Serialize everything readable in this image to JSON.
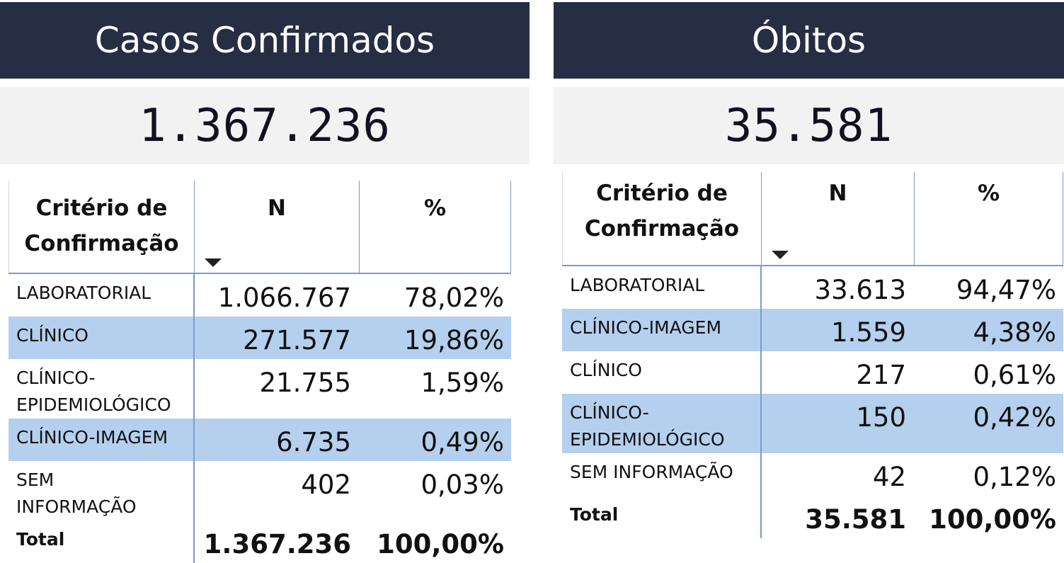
{
  "casos": {
    "title": "Casos Confirmados",
    "total_value": "1.367.236",
    "table": {
      "headers": {
        "criterio": "Critério de Confirmação",
        "n": "N",
        "pct": "%"
      },
      "rows": [
        {
          "criterio": "LABORATORIAL",
          "n": "1.066.767",
          "pct": "78,02%"
        },
        {
          "criterio": "CLÍNICO",
          "n": "271.577",
          "pct": "19,86%"
        },
        {
          "criterio": "CLÍNICO-EPIDEMIOLÓGICO",
          "n": "21.755",
          "pct": "1,59%"
        },
        {
          "criterio": "CLÍNICO-IMAGEM",
          "n": "6.735",
          "pct": "0,49%"
        },
        {
          "criterio": "SEM INFORMAÇÃO",
          "n": "402",
          "pct": "0,03%"
        }
      ],
      "total": {
        "label": "Total",
        "n": "1.367.236",
        "pct": "100,00%"
      }
    }
  },
  "obitos": {
    "title": "Óbitos",
    "total_value": "35.581",
    "table": {
      "headers": {
        "criterio": "Critério de Confirmação",
        "n": "N",
        "pct": "%"
      },
      "rows": [
        {
          "criterio": "LABORATORIAL",
          "n": "33.613",
          "pct": "94,47%"
        },
        {
          "criterio": "CLÍNICO-IMAGEM",
          "n": "1.559",
          "pct": "4,38%"
        },
        {
          "criterio": "CLÍNICO",
          "n": "217",
          "pct": "0,61%"
        },
        {
          "criterio": "CLÍNICO-EPIDEMIOLÓGICO",
          "n": "150",
          "pct": "0,42%"
        },
        {
          "criterio": "SEM INFORMAÇÃO",
          "n": "42",
          "pct": "0,12%"
        }
      ],
      "total": {
        "label": "Total",
        "n": "35.581",
        "pct": "100,00%"
      }
    }
  },
  "colors": {
    "title_bar": "#262e44",
    "card_bg": "#f2f2f2",
    "row_highlight": "#b5d0ee",
    "border": "#7a9cc8"
  }
}
